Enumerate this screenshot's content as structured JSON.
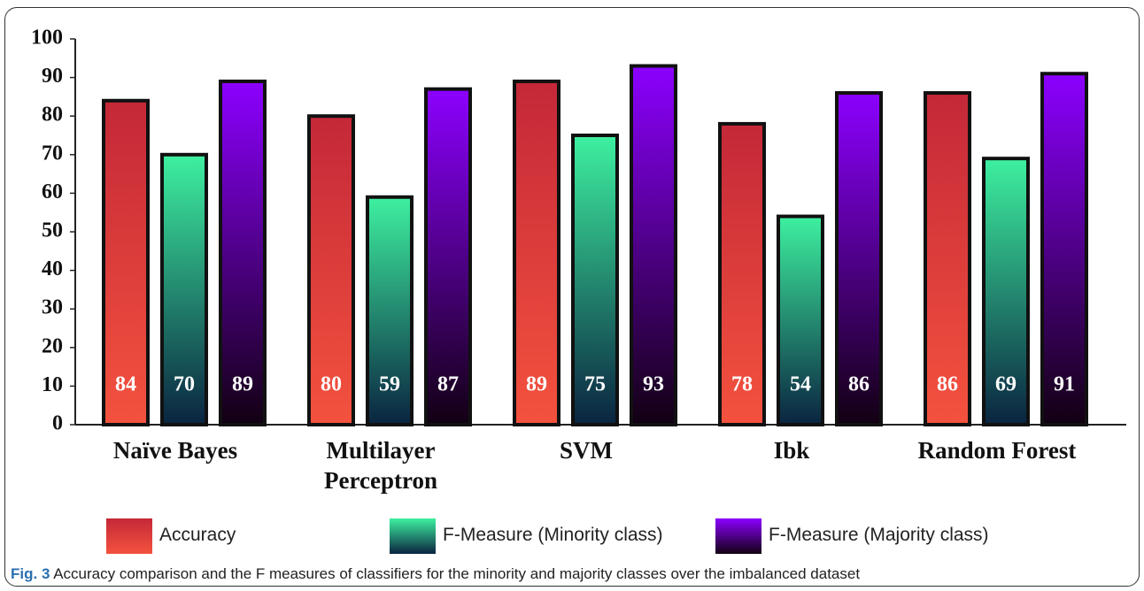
{
  "chart_data": {
    "type": "bar",
    "categories": [
      "Naïve Bayes",
      "Multilayer Perceptron",
      "SVM",
      "Ibk",
      "Random Forest"
    ],
    "series": [
      {
        "name": "Accuracy",
        "color": "#e03a3c",
        "gradient": [
          "#c42838",
          "#f4523e"
        ],
        "values": [
          84,
          80,
          89,
          78,
          86
        ]
      },
      {
        "name": "F-Measure (Minority class)",
        "color": "#2bb884",
        "gradient": [
          "#3ef0a0",
          "#0a2440"
        ],
        "values": [
          70,
          59,
          75,
          54,
          69
        ]
      },
      {
        "name": "F-Measure (Majority class)",
        "color": "#6a00c8",
        "gradient": [
          "#8c00ff",
          "#120012"
        ],
        "values": [
          89,
          87,
          93,
          86,
          91
        ]
      }
    ],
    "ylim": [
      0,
      100
    ],
    "yticks": [
      0,
      10,
      20,
      30,
      40,
      50,
      60,
      70,
      80,
      90,
      100
    ]
  },
  "caption_label": "Fig. 3",
  "caption": "Accuracy comparison and the F measures of classifiers for the minority and majority classes over the imbalanced dataset"
}
